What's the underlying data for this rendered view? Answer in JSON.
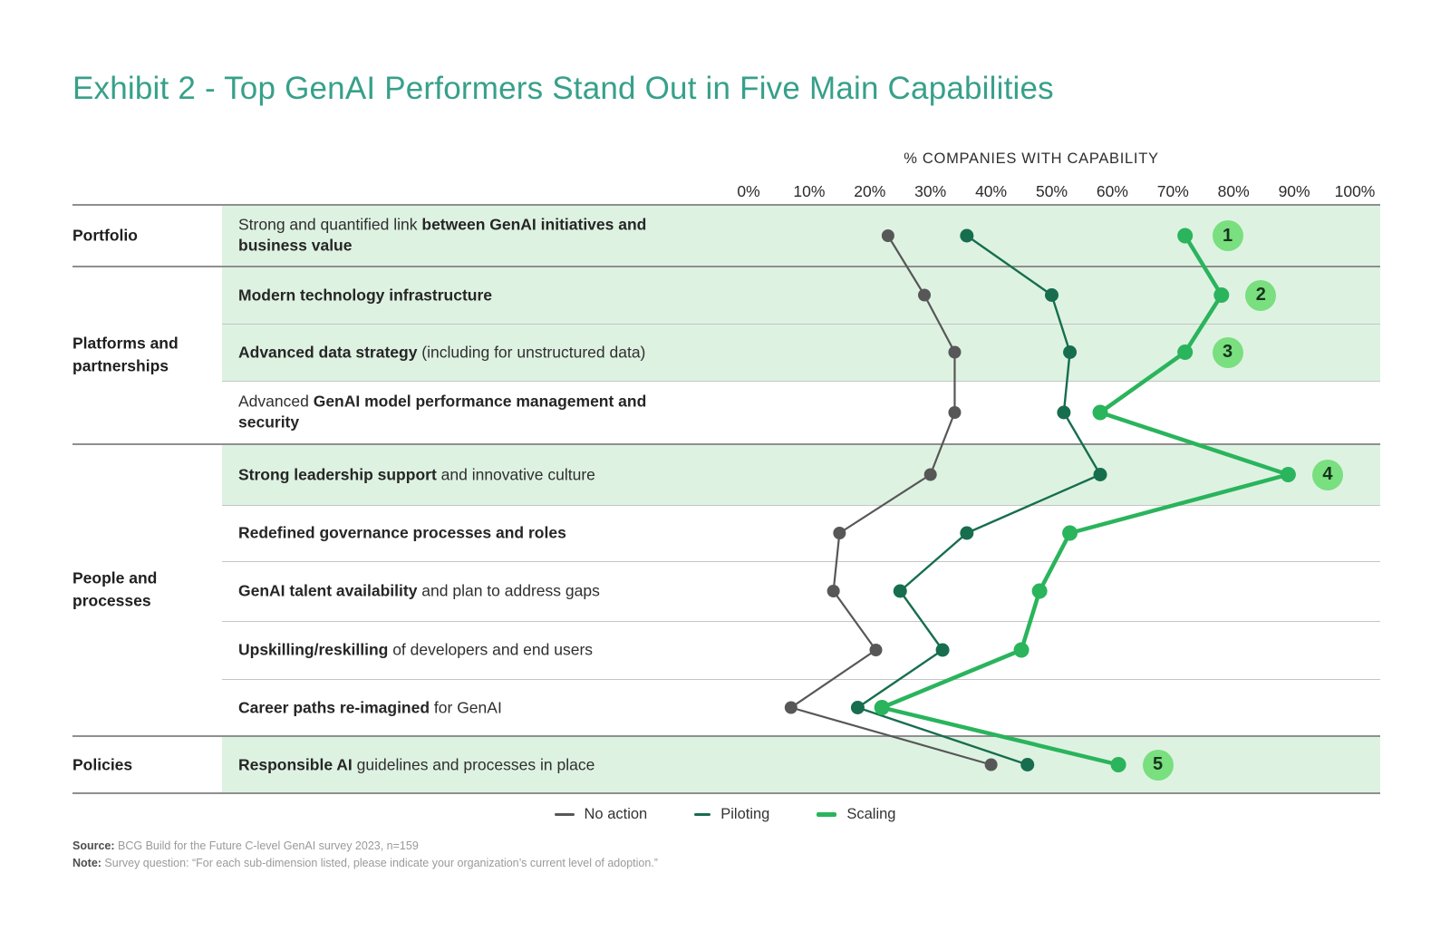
{
  "title": "Exhibit 2 - Top GenAI Performers Stand Out in Five Main Capabilities",
  "colors": {
    "title": "#37a08a",
    "no_action": "#575757",
    "piloting": "#166e4e",
    "scaling": "#2ab45c",
    "row_shade": "#def2e2",
    "badge_bg": "#79df7f",
    "badge_text": "#17331d",
    "grid_strong": "#8f8f8f",
    "grid_light": "#c5c5c5"
  },
  "chart_data": {
    "type": "line",
    "title": "Exhibit 2 - Top GenAI Performers Stand Out in Five Main Capabilities",
    "axis_title": "% COMPANIES WITH CAPABILITY",
    "x_ticks": [
      "0%",
      "10%",
      "20%",
      "30%",
      "40%",
      "50%",
      "60%",
      "70%",
      "80%",
      "90%",
      "100%"
    ],
    "xlim": [
      0,
      100
    ],
    "grid": false,
    "legend_position": "bottom",
    "series": [
      {
        "key": "no_action",
        "name": "No action",
        "color": "#575757",
        "values": [
          23,
          29,
          34,
          34,
          30,
          15,
          14,
          21,
          7,
          40
        ]
      },
      {
        "key": "piloting",
        "name": "Piloting",
        "color": "#166e4e",
        "values": [
          36,
          50,
          53,
          52,
          58,
          36,
          25,
          32,
          18,
          46
        ]
      },
      {
        "key": "scaling",
        "name": "Scaling",
        "color": "#2ab45c",
        "values": [
          72,
          78,
          72,
          58,
          89,
          53,
          48,
          45,
          22,
          61
        ]
      }
    ],
    "groups": [
      {
        "label": "Portfolio",
        "start_row": 0,
        "end_row": 0
      },
      {
        "label": "Platforms and partnerships",
        "start_row": 1,
        "end_row": 3
      },
      {
        "label": "People and processes",
        "start_row": 4,
        "end_row": 8
      },
      {
        "label": "Policies",
        "start_row": 9,
        "end_row": 9
      }
    ],
    "capabilities": [
      {
        "segments": [
          {
            "text": "Strong and quantified link ",
            "bold": false
          },
          {
            "text": "between GenAI initiatives and business value",
            "bold": true
          }
        ],
        "shaded": true,
        "badge": {
          "label": "1",
          "x_pct": 79
        }
      },
      {
        "segments": [
          {
            "text": "Modern technology infrastructure",
            "bold": true
          }
        ],
        "shaded": true,
        "badge": {
          "label": "2",
          "x_pct": 84.5
        }
      },
      {
        "segments": [
          {
            "text": "Advanced data strategy",
            "bold": true
          },
          {
            "text": " (including for unstructured data)",
            "bold": false
          }
        ],
        "shaded": true,
        "badge": {
          "label": "3",
          "x_pct": 79
        }
      },
      {
        "segments": [
          {
            "text": "Advanced ",
            "bold": false
          },
          {
            "text": "GenAI model performance management and security",
            "bold": true
          }
        ],
        "shaded": false,
        "badge": null
      },
      {
        "segments": [
          {
            "text": "Strong leadership support",
            "bold": true
          },
          {
            "text": " and innovative culture",
            "bold": false
          }
        ],
        "shaded": true,
        "badge": {
          "label": "4",
          "x_pct": 95.5
        }
      },
      {
        "segments": [
          {
            "text": "Redefined governance processes and roles",
            "bold": true
          }
        ],
        "shaded": false,
        "badge": null
      },
      {
        "segments": [
          {
            "text": "GenAI talent availability",
            "bold": true
          },
          {
            "text": " and plan to address gaps",
            "bold": false
          }
        ],
        "shaded": false,
        "badge": null
      },
      {
        "segments": [
          {
            "text": "Upskilling/reskilling",
            "bold": true
          },
          {
            "text": " of developers and end users",
            "bold": false
          }
        ],
        "shaded": false,
        "badge": null
      },
      {
        "segments": [
          {
            "text": "Career paths re-imagined",
            "bold": true
          },
          {
            "text": " for GenAI",
            "bold": false
          }
        ],
        "shaded": false,
        "badge": null
      },
      {
        "segments": [
          {
            "text": "Responsible AI",
            "bold": true
          },
          {
            "text": " guidelines and processes in place",
            "bold": false
          }
        ],
        "shaded": true,
        "badge": {
          "label": "5",
          "x_pct": 67.5
        }
      }
    ]
  },
  "legend": {
    "items": [
      {
        "label": "No action"
      },
      {
        "label": "Piloting"
      },
      {
        "label": "Scaling"
      }
    ]
  },
  "footer": {
    "source_label": "Source:",
    "source_text": " BCG Build for the Future C-level GenAI survey 2023, n=159",
    "note_label": "Note:",
    "note_text": " Survey question:  “For each sub-dimension listed, please indicate your organization’s current level of adoption.”"
  }
}
